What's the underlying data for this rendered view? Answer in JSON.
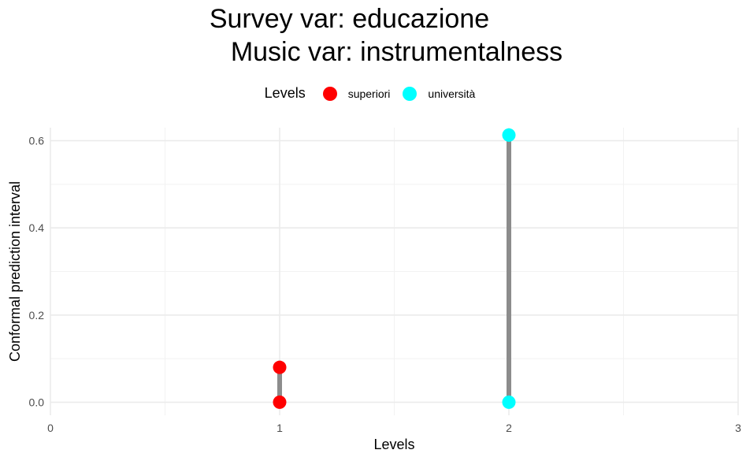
{
  "chart_data": {
    "type": "scatter",
    "title_lines": [
      "Survey var: educazione",
      "Music var: instrumentalness"
    ],
    "xlabel": "Levels",
    "ylabel": "Conformal prediction interval",
    "xlim": [
      0,
      3
    ],
    "ylim": [
      -0.03,
      0.63
    ],
    "x_ticks": [
      0,
      1,
      2,
      3
    ],
    "y_ticks": [
      0.0,
      0.2,
      0.4,
      0.6
    ],
    "y_tick_labels": [
      "0.0",
      "0.2",
      "0.4",
      "0.6"
    ],
    "grid": true,
    "legend": {
      "title": "Levels",
      "position": "top",
      "entries": [
        {
          "label": "superiori",
          "color": "#FF0000"
        },
        {
          "label": "università",
          "color": "#00FFFF"
        }
      ]
    },
    "series": [
      {
        "name": "superiori",
        "x": 1,
        "lower": 0.0,
        "upper": 0.08,
        "color": "#FF0000"
      },
      {
        "name": "università",
        "x": 2,
        "lower": 0.0,
        "upper": 0.613,
        "color": "#00FFFF"
      }
    ],
    "interval_line_color": "#8C8C8C"
  }
}
